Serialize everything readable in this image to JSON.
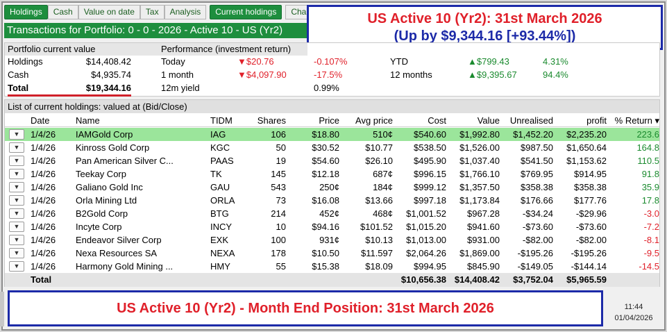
{
  "tabs": [
    {
      "label": "Holdings",
      "active": true
    },
    {
      "label": "Cash",
      "active": false
    },
    {
      "label": "Value on date",
      "active": false
    },
    {
      "label": "Tax",
      "active": false
    },
    {
      "label": "Analysis",
      "active": false
    },
    {
      "label": "Current holdings",
      "active": true
    },
    {
      "label": "Char",
      "active": false
    }
  ],
  "title": "Transactions for Portfolio: 0 - 0 - 2026 - Active 10 - US (Yr2)",
  "callout_top": {
    "line1": "US Active 10 (Yr2): 31st March 2026",
    "line2": "(Up by $9,344.16   [+93.44%])"
  },
  "summary": {
    "current_value_header": "Portfolio current value",
    "performance_header": "Performance (investment return)",
    "holdings_label": "Holdings",
    "holdings_value": "$14,408.42",
    "cash_label": "Cash",
    "cash_value": "$4,935.74",
    "total_label": "Total",
    "total_value": "$19,344.16",
    "today_label": "Today",
    "today_value": "▼$20.76",
    "today_pct": "-0.107%",
    "month_label": "1 month",
    "month_value": "▼$4,097.90",
    "month_pct": "-17.5%",
    "yield_label": "12m yield",
    "yield_value": "0.99%",
    "ytd_label": "YTD",
    "ytd_value": "▲$799.43",
    "ytd_pct": "4.31%",
    "m12_label": "12 months",
    "m12_value": "▲$9,395.67",
    "m12_pct": "94.4%"
  },
  "holdings": {
    "caption": "List of current holdings: valued at (Bid/Close)",
    "columns": {
      "date": "Date",
      "name": "Name",
      "tidm": "TIDM",
      "shares": "Shares",
      "price": "Price",
      "avg": "Avg price",
      "cost": "Cost",
      "value": "Value",
      "unrealised": "Unrealised",
      "profit": "profit",
      "ret": "% Return ▾"
    },
    "rows": [
      {
        "date": "1/4/26",
        "name": "IAMGold Corp",
        "tidm": "IAG",
        "shares": "106",
        "price": "$18.80",
        "avg": "510¢",
        "cost": "$540.60",
        "value": "$1,992.80",
        "unrealised": "$1,452.20",
        "profit": "$2,235.20",
        "ret": "223.6"
      },
      {
        "date": "1/4/26",
        "name": "Kinross Gold Corp",
        "tidm": "KGC",
        "shares": "50",
        "price": "$30.52",
        "avg": "$10.77",
        "cost": "$538.50",
        "value": "$1,526.00",
        "unrealised": "$987.50",
        "profit": "$1,650.64",
        "ret": "164.8"
      },
      {
        "date": "1/4/26",
        "name": "Pan American Silver C...",
        "tidm": "PAAS",
        "shares": "19",
        "price": "$54.60",
        "avg": "$26.10",
        "cost": "$495.90",
        "value": "$1,037.40",
        "unrealised": "$541.50",
        "profit": "$1,153.62",
        "ret": "110.5"
      },
      {
        "date": "1/4/26",
        "name": "Teekay Corp",
        "tidm": "TK",
        "shares": "145",
        "price": "$12.18",
        "avg": "687¢",
        "cost": "$996.15",
        "value": "$1,766.10",
        "unrealised": "$769.95",
        "profit": "$914.95",
        "ret": "91.8"
      },
      {
        "date": "1/4/26",
        "name": "Galiano Gold Inc",
        "tidm": "GAU",
        "shares": "543",
        "price": "250¢",
        "avg": "184¢",
        "cost": "$999.12",
        "value": "$1,357.50",
        "unrealised": "$358.38",
        "profit": "$358.38",
        "ret": "35.9"
      },
      {
        "date": "1/4/26",
        "name": "Orla Mining Ltd",
        "tidm": "ORLA",
        "shares": "73",
        "price": "$16.08",
        "avg": "$13.66",
        "cost": "$997.18",
        "value": "$1,173.84",
        "unrealised": "$176.66",
        "profit": "$177.76",
        "ret": "17.8"
      },
      {
        "date": "1/4/26",
        "name": "B2Gold Corp",
        "tidm": "BTG",
        "shares": "214",
        "price": "452¢",
        "avg": "468¢",
        "cost": "$1,001.52",
        "value": "$967.28",
        "unrealised": "-$34.24",
        "profit": "-$29.96",
        "ret": "-3.0"
      },
      {
        "date": "1/4/26",
        "name": "Incyte Corp",
        "tidm": "INCY",
        "shares": "10",
        "price": "$94.16",
        "avg": "$101.52",
        "cost": "$1,015.20",
        "value": "$941.60",
        "unrealised": "-$73.60",
        "profit": "-$73.60",
        "ret": "-7.2"
      },
      {
        "date": "1/4/26",
        "name": "Endeavor Silver Corp",
        "tidm": "EXK",
        "shares": "100",
        "price": "931¢",
        "avg": "$10.13",
        "cost": "$1,013.00",
        "value": "$931.00",
        "unrealised": "-$82.00",
        "profit": "-$82.00",
        "ret": "-8.1"
      },
      {
        "date": "1/4/26",
        "name": "Nexa Resources SA",
        "tidm": "NEXA",
        "shares": "178",
        "price": "$10.50",
        "avg": "$11.597",
        "cost": "$2,064.26",
        "value": "$1,869.00",
        "unrealised": "-$195.26",
        "profit": "-$195.26",
        "ret": "-9.5"
      },
      {
        "date": "1/4/26",
        "name": "Harmony Gold Mining ...",
        "tidm": "HMY",
        "shares": "55",
        "price": "$15.38",
        "avg": "$18.09",
        "cost": "$994.95",
        "value": "$845.90",
        "unrealised": "-$149.05",
        "profit": "-$144.14",
        "ret": "-14.5"
      }
    ],
    "total": {
      "label": "Total",
      "cost": "$10,656.38",
      "value": "$14,408.42",
      "unrealised": "$3,752.04",
      "profit": "$5,965.59"
    }
  },
  "callout_bottom": "US Active 10 (Yr2) - Month End Position: 31st March 2026",
  "clock": {
    "time": "11:44",
    "date": "01/04/2026"
  },
  "colors": {
    "accent_green": "#1e8e3e",
    "selected_row": "#9be59b",
    "positive": "#1a8a2e",
    "negative": "#e0202a",
    "callout_border": "#1c2aa8"
  },
  "icons": {
    "row_dropdown": "chevron-down-icon"
  }
}
